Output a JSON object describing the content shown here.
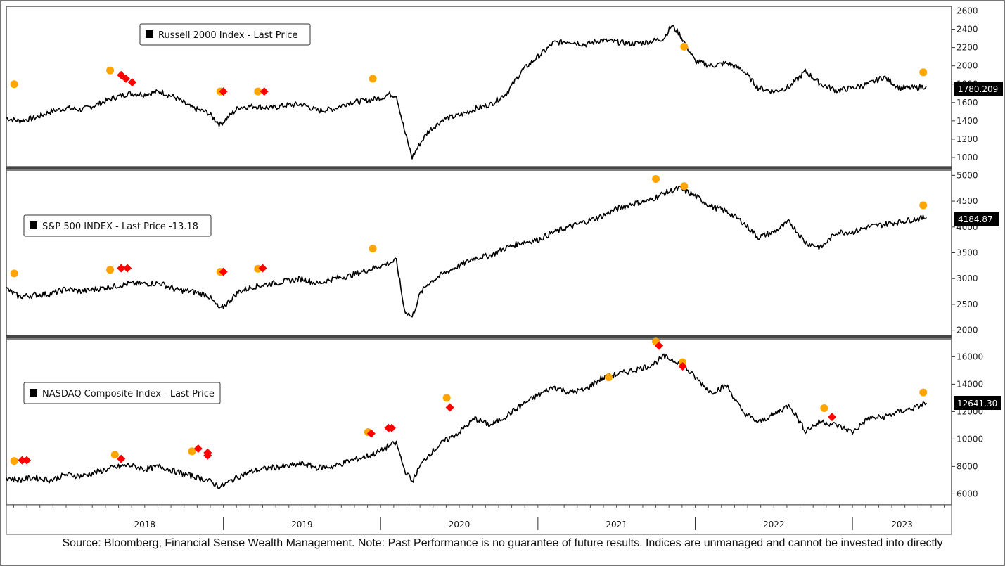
{
  "source_note": "Source: Bloomberg, Financial Sense Wealth Management. Note: Past Performance is no guarantee of future results. Indices are unmanaged and cannot be invested into directly",
  "colors": {
    "line": "#000000",
    "circle_marker": "#FFA500",
    "diamond_marker": "#FF0000",
    "frame": "#555555",
    "last_label_bg": "#000000"
  },
  "chart_data": [
    {
      "type": "line",
      "legend": "Russell 2000 Index - Last Price",
      "last_value_label": "1780.209",
      "x_range": [
        2017.62,
        2023.63
      ],
      "ylim": [
        900,
        2650
      ],
      "yticks": [
        1000,
        1200,
        1400,
        1600,
        1800,
        2000,
        2200,
        2400,
        2600
      ],
      "x_years": [
        "2018",
        "2019",
        "2020",
        "2021",
        "2022",
        "2023"
      ],
      "series": [
        {
          "x": [
            2017.62,
            2017.7,
            2017.8,
            2017.9,
            2018.0,
            2018.1,
            2018.2,
            2018.3,
            2018.4,
            2018.5,
            2018.6,
            2018.7,
            2018.8,
            2018.9,
            2018.98,
            2019.1,
            2019.2,
            2019.3,
            2019.4,
            2019.5,
            2019.6,
            2019.7,
            2019.8,
            2019.9,
            2020.0,
            2020.05,
            2020.1,
            2020.15,
            2020.2,
            2020.25,
            2020.3,
            2020.4,
            2020.5,
            2020.6,
            2020.7,
            2020.8,
            2020.9,
            2021.0,
            2021.1,
            2021.2,
            2021.3,
            2021.4,
            2021.5,
            2021.6,
            2021.7,
            2021.8,
            2021.85,
            2021.9,
            2022.0,
            2022.1,
            2022.2,
            2022.3,
            2022.4,
            2022.5,
            2022.6,
            2022.7,
            2022.8,
            2022.9,
            2023.0,
            2023.1,
            2023.2,
            2023.3,
            2023.4,
            2023.47
          ],
          "y": [
            1430,
            1400,
            1430,
            1500,
            1540,
            1520,
            1580,
            1650,
            1700,
            1690,
            1720,
            1650,
            1540,
            1490,
            1360,
            1550,
            1560,
            1540,
            1570,
            1580,
            1510,
            1530,
            1600,
            1620,
            1650,
            1690,
            1680,
            1300,
            1000,
            1150,
            1280,
            1420,
            1460,
            1530,
            1580,
            1700,
            1950,
            2100,
            2250,
            2270,
            2230,
            2280,
            2260,
            2240,
            2260,
            2300,
            2440,
            2350,
            2050,
            2000,
            2030,
            1960,
            1760,
            1720,
            1770,
            1940,
            1800,
            1730,
            1760,
            1800,
            1880,
            1760,
            1760,
            1780
          ]
        }
      ],
      "markers": [
        {
          "shape": "circle",
          "x": 2017.67,
          "y": 1800
        },
        {
          "shape": "circle",
          "x": 2018.28,
          "y": 1950
        },
        {
          "shape": "diamond",
          "x": 2018.35,
          "y": 1900
        },
        {
          "shape": "diamond",
          "x": 2018.38,
          "y": 1860
        },
        {
          "shape": "diamond",
          "x": 2018.42,
          "y": 1820
        },
        {
          "shape": "circle",
          "x": 2018.98,
          "y": 1720
        },
        {
          "shape": "diamond",
          "x": 2019.0,
          "y": 1720
        },
        {
          "shape": "circle",
          "x": 2019.22,
          "y": 1720
        },
        {
          "shape": "diamond",
          "x": 2019.26,
          "y": 1720
        },
        {
          "shape": "circle",
          "x": 2019.95,
          "y": 1860
        },
        {
          "shape": "circle",
          "x": 2021.93,
          "y": 2210
        },
        {
          "shape": "circle",
          "x": 2023.45,
          "y": 1930
        }
      ]
    },
    {
      "type": "line",
      "legend": "S&P 500 INDEX - Last Price  -13.18",
      "last_value_label": "4184.87",
      "x_range": [
        2017.62,
        2023.63
      ],
      "ylim": [
        1900,
        5100
      ],
      "yticks": [
        2000,
        2500,
        3000,
        3500,
        4000,
        4500,
        5000
      ],
      "x_years": [
        "2018",
        "2019",
        "2020",
        "2021",
        "2022",
        "2023"
      ],
      "series": [
        {
          "x": [
            2017.62,
            2017.7,
            2017.8,
            2017.9,
            2018.0,
            2018.1,
            2018.2,
            2018.3,
            2018.4,
            2018.5,
            2018.6,
            2018.7,
            2018.8,
            2018.9,
            2018.98,
            2019.1,
            2019.2,
            2019.3,
            2019.4,
            2019.5,
            2019.6,
            2019.7,
            2019.8,
            2019.9,
            2020.0,
            2020.05,
            2020.1,
            2020.15,
            2020.2,
            2020.25,
            2020.3,
            2020.4,
            2020.5,
            2020.6,
            2020.7,
            2020.8,
            2020.9,
            2021.0,
            2021.1,
            2021.2,
            2021.3,
            2021.4,
            2021.5,
            2021.6,
            2021.7,
            2021.8,
            2021.9,
            2022.0,
            2022.1,
            2022.2,
            2022.3,
            2022.4,
            2022.5,
            2022.6,
            2022.7,
            2022.8,
            2022.9,
            2023.0,
            2023.1,
            2023.2,
            2023.3,
            2023.4,
            2023.47
          ],
          "y": [
            2800,
            2650,
            2680,
            2700,
            2800,
            2750,
            2800,
            2850,
            2900,
            2900,
            2910,
            2780,
            2750,
            2680,
            2400,
            2750,
            2850,
            2900,
            2950,
            3000,
            2900,
            3000,
            3050,
            3150,
            3250,
            3300,
            3350,
            2400,
            2250,
            2700,
            2900,
            3100,
            3250,
            3400,
            3450,
            3600,
            3700,
            3750,
            3900,
            4000,
            4100,
            4200,
            4350,
            4450,
            4500,
            4650,
            4750,
            4600,
            4400,
            4300,
            4100,
            3800,
            3900,
            4100,
            3700,
            3600,
            3900,
            3900,
            4000,
            4050,
            4100,
            4150,
            4185
          ]
        }
      ],
      "markers": [
        {
          "shape": "circle",
          "x": 2017.67,
          "y": 3100
        },
        {
          "shape": "circle",
          "x": 2018.28,
          "y": 3170
        },
        {
          "shape": "diamond",
          "x": 2018.35,
          "y": 3200
        },
        {
          "shape": "diamond",
          "x": 2018.39,
          "y": 3200
        },
        {
          "shape": "circle",
          "x": 2018.98,
          "y": 3130
        },
        {
          "shape": "diamond",
          "x": 2019.0,
          "y": 3130
        },
        {
          "shape": "circle",
          "x": 2019.22,
          "y": 3190
        },
        {
          "shape": "diamond",
          "x": 2019.25,
          "y": 3200
        },
        {
          "shape": "circle",
          "x": 2019.95,
          "y": 3580
        },
        {
          "shape": "circle",
          "x": 2021.75,
          "y": 4930
        },
        {
          "shape": "circle",
          "x": 2021.93,
          "y": 4790
        },
        {
          "shape": "circle",
          "x": 2023.45,
          "y": 4420
        }
      ]
    },
    {
      "type": "line",
      "legend": "NASDAQ Composite Index - Last Price",
      "last_value_label": "12641.30",
      "x_range": [
        2017.62,
        2023.63
      ],
      "ylim": [
        5200,
        17300
      ],
      "yticks": [
        6000,
        8000,
        10000,
        12000,
        14000,
        16000
      ],
      "x_years": [
        "2018",
        "2019",
        "2020",
        "2021",
        "2022",
        "2023"
      ],
      "series": [
        {
          "x": [
            2017.62,
            2017.7,
            2017.8,
            2017.9,
            2018.0,
            2018.1,
            2018.2,
            2018.3,
            2018.4,
            2018.5,
            2018.6,
            2018.7,
            2018.8,
            2018.9,
            2018.98,
            2019.1,
            2019.2,
            2019.3,
            2019.4,
            2019.5,
            2019.6,
            2019.7,
            2019.8,
            2019.9,
            2020.0,
            2020.05,
            2020.1,
            2020.15,
            2020.2,
            2020.25,
            2020.3,
            2020.4,
            2020.5,
            2020.6,
            2020.7,
            2020.8,
            2020.9,
            2021.0,
            2021.1,
            2021.2,
            2021.3,
            2021.4,
            2021.5,
            2021.6,
            2021.7,
            2021.75,
            2021.8,
            2021.9,
            2022.0,
            2022.1,
            2022.2,
            2022.3,
            2022.4,
            2022.5,
            2022.6,
            2022.7,
            2022.8,
            2022.9,
            2023.0,
            2023.1,
            2023.2,
            2023.3,
            2023.4,
            2023.47
          ],
          "y": [
            7200,
            7000,
            7200,
            7000,
            7400,
            7300,
            7600,
            7900,
            8100,
            7800,
            8000,
            7600,
            7300,
            7000,
            6500,
            7300,
            7700,
            7900,
            8000,
            8200,
            7900,
            8000,
            8400,
            8700,
            9100,
            9500,
            9700,
            7800,
            6900,
            8000,
            8800,
            9800,
            10500,
            11500,
            11000,
            11700,
            12500,
            13200,
            13800,
            13400,
            13600,
            14400,
            14700,
            15000,
            15300,
            15600,
            16000,
            15600,
            14500,
            13400,
            13900,
            12000,
            11200,
            11800,
            12500,
            10600,
            11300,
            11000,
            10500,
            11500,
            11600,
            12000,
            12300,
            12641
          ]
        }
      ],
      "markers": [
        {
          "shape": "circle",
          "x": 2017.67,
          "y": 8400
        },
        {
          "shape": "diamond",
          "x": 2017.72,
          "y": 8450
        },
        {
          "shape": "diamond",
          "x": 2017.75,
          "y": 8450
        },
        {
          "shape": "circle",
          "x": 2018.31,
          "y": 8850
        },
        {
          "shape": "diamond",
          "x": 2018.35,
          "y": 8550
        },
        {
          "shape": "circle",
          "x": 2018.8,
          "y": 9100
        },
        {
          "shape": "diamond",
          "x": 2018.84,
          "y": 9300
        },
        {
          "shape": "diamond",
          "x": 2018.9,
          "y": 9000
        },
        {
          "shape": "diamond",
          "x": 2018.9,
          "y": 8800
        },
        {
          "shape": "circle",
          "x": 2019.92,
          "y": 10500
        },
        {
          "shape": "diamond",
          "x": 2019.94,
          "y": 10400
        },
        {
          "shape": "diamond",
          "x": 2020.05,
          "y": 10800
        },
        {
          "shape": "diamond",
          "x": 2020.07,
          "y": 10800
        },
        {
          "shape": "circle",
          "x": 2020.42,
          "y": 13000
        },
        {
          "shape": "diamond",
          "x": 2020.44,
          "y": 12300
        },
        {
          "shape": "circle",
          "x": 2021.45,
          "y": 14500
        },
        {
          "shape": "circle",
          "x": 2021.75,
          "y": 17100
        },
        {
          "shape": "diamond",
          "x": 2021.77,
          "y": 16800
        },
        {
          "shape": "circle",
          "x": 2021.92,
          "y": 15600
        },
        {
          "shape": "diamond",
          "x": 2021.92,
          "y": 15300
        },
        {
          "shape": "circle",
          "x": 2022.82,
          "y": 12250
        },
        {
          "shape": "diamond",
          "x": 2022.87,
          "y": 11600
        },
        {
          "shape": "circle",
          "x": 2023.45,
          "y": 13400
        }
      ]
    }
  ]
}
